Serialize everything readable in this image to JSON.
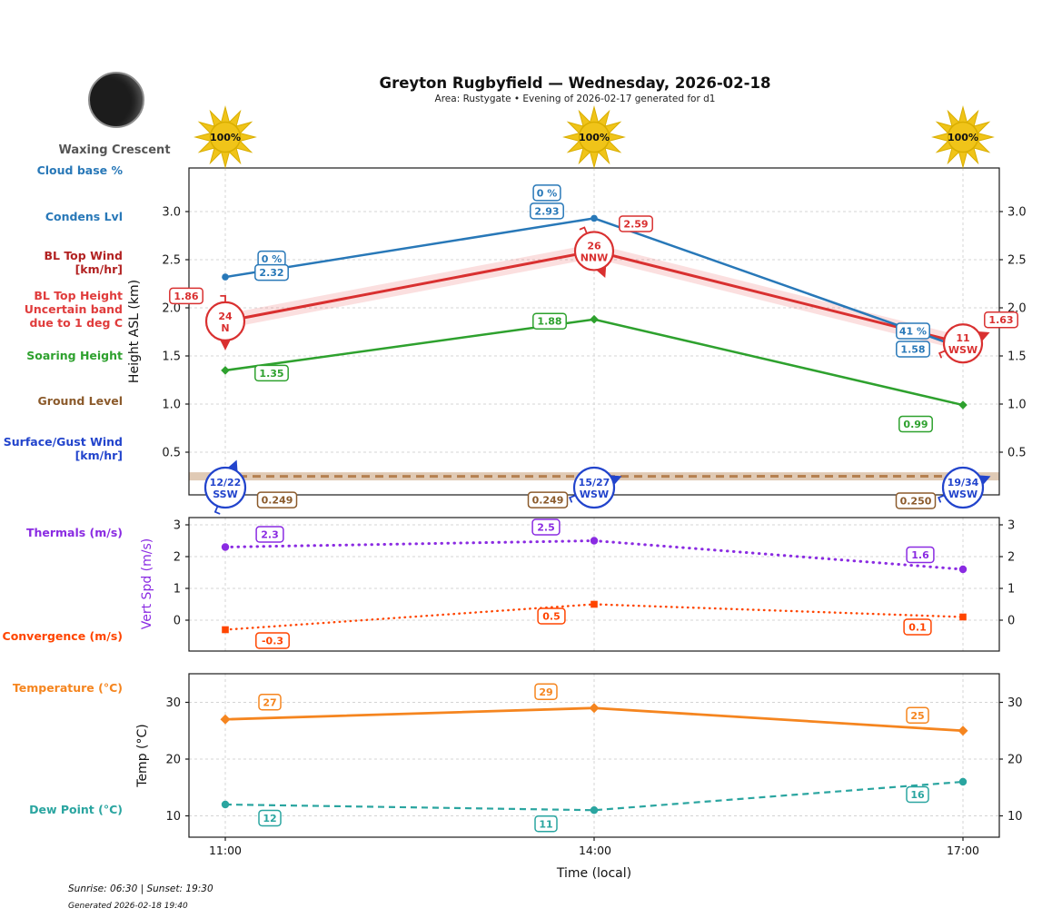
{
  "header": {
    "title": "Greyton Rugbyfield — Wednesday, 2026-02-18",
    "subtitle": "Area: Rustygate • Evening of 2026-02-17 generated for d1",
    "moon_phase": "Waxing Crescent"
  },
  "x_axis": {
    "label": "Time (local)",
    "ticks": [
      "11:00",
      "14:00",
      "17:00"
    ]
  },
  "left_labels": [
    {
      "text": "Cloud base %",
      "color": "#2878b8"
    },
    {
      "text": "Condens Lvl",
      "color": "#2878b8"
    },
    {
      "text": "BL Top Wind\n[km/hr]",
      "color": "#b22222"
    },
    {
      "text": "BL Top Height\nUncertain band\ndue to 1 deg C",
      "color": "#e03c3c"
    },
    {
      "text": "Soaring Height",
      "color": "#2ea12e"
    },
    {
      "text": "Ground Level",
      "color": "#8b5a2b"
    },
    {
      "text": "Surface/Gust Wind\n[km/hr]",
      "color": "#2244cc"
    },
    {
      "text": "Thermals (m/s)",
      "color": "#8a2be2"
    },
    {
      "text": "Convergence (m/s)",
      "color": "#ff4500"
    },
    {
      "text": "Temperature (°C)",
      "color": "#f5851f"
    },
    {
      "text": "Dew Point (°C)",
      "color": "#2aa5a0"
    }
  ],
  "footer": {
    "sun_times": "Sunrise: 06:30 | Sunset: 19:30",
    "generated": "Generated 2026-02-18 19:40"
  },
  "colors": {
    "condens_blue": "#2878b8",
    "bl_red": "#d93030",
    "bl_band": "rgba(229,57,53,0.16)",
    "soaring_green": "#2ea12e",
    "ground_brown": "#b5804f",
    "ground_band": "rgba(181,128,79,0.42)",
    "ground_label": "#8b5a2b",
    "surface_wind_blue": "#2244cc",
    "thermals_purple": "#8a2be2",
    "convergence_orangered": "#ff4500",
    "temperature_orange": "#f5851f",
    "dew_teal": "#2aa5a0",
    "sun_gold": "#f0c419",
    "sun_edge": "#d9ae00",
    "grid_gray": "#d4d4d4",
    "spine": "#1a1a1a"
  },
  "chart_data": [
    {
      "type": "line",
      "panel": "heights",
      "title": "Boundary layer / cloud heights",
      "x": [
        "11:00",
        "14:00",
        "17:00"
      ],
      "ylabel": "Height ASL (km)",
      "yticks": [
        "3.0",
        "2.5",
        "2.0",
        "1.5",
        "1.0",
        "0.5"
      ],
      "ylim": [
        0.05,
        3.45
      ],
      "grid": true,
      "series": [
        {
          "name": "Condens Lvl",
          "values": [
            2.32,
            2.93,
            1.58
          ],
          "point_labels": [
            "2.32",
            "2.93",
            "1.58"
          ]
        },
        {
          "name": "Cloud base %",
          "point_labels": [
            "0 %",
            "0 %",
            "41 %"
          ]
        },
        {
          "name": "BL Top Height",
          "values": [
            1.86,
            2.59,
            1.63
          ],
          "point_labels": [
            "1.86",
            "2.59",
            "1.63"
          ],
          "uncertainty_band": "due to 1 deg C"
        },
        {
          "name": "Soaring Height",
          "values": [
            1.35,
            1.88,
            0.99
          ],
          "point_labels": [
            "1.35",
            "1.88",
            "0.99"
          ]
        },
        {
          "name": "Ground Level",
          "values": [
            0.249,
            0.249,
            0.25
          ],
          "point_labels": [
            "0.249",
            "0.249",
            "0.250"
          ]
        }
      ],
      "bl_top_wind": [
        {
          "speed": "24",
          "dir": "N"
        },
        {
          "speed": "26",
          "dir": "NNW"
        },
        {
          "speed": "11",
          "dir": "WSW"
        }
      ],
      "surface_gust_wind": [
        {
          "speed": "12/22",
          "dir": "SSW"
        },
        {
          "speed": "15/27",
          "dir": "WSW"
        },
        {
          "speed": "19/34",
          "dir": "WSW"
        }
      ],
      "sun_percent": [
        "100%",
        "100%",
        "100%"
      ]
    },
    {
      "type": "line",
      "panel": "vertical-speed",
      "x": [
        "11:00",
        "14:00",
        "17:00"
      ],
      "ylabel": "Vert Spd (m/s)",
      "yticks": [
        "3",
        "2",
        "1",
        "0"
      ],
      "grid": true,
      "series": [
        {
          "name": "Thermals (m/s)",
          "values": [
            2.3,
            2.5,
            1.6
          ],
          "point_labels": [
            "2.3",
            "2.5",
            "1.6"
          ]
        },
        {
          "name": "Convergence (m/s)",
          "values": [
            -0.3,
            0.5,
            0.1
          ],
          "point_labels": [
            "-0.3",
            "0.5",
            "0.1"
          ]
        }
      ]
    },
    {
      "type": "line",
      "panel": "temperature",
      "x": [
        "11:00",
        "14:00",
        "17:00"
      ],
      "ylabel": "Temp (°C)",
      "yticks": [
        "30",
        "20",
        "10"
      ],
      "grid": true,
      "series": [
        {
          "name": "Temperature (°C)",
          "values": [
            27,
            29,
            25
          ],
          "point_labels": [
            "27",
            "29",
            "25"
          ]
        },
        {
          "name": "Dew Point (°C)",
          "values": [
            12,
            11,
            16
          ],
          "point_labels": [
            "12",
            "11",
            "16"
          ]
        }
      ]
    }
  ]
}
